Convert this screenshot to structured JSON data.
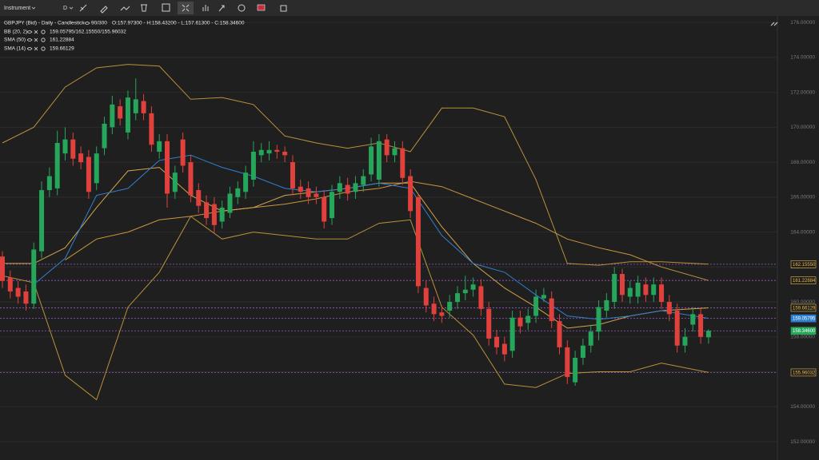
{
  "toolbar": {
    "instrument": "Instrument",
    "timeframe": "D"
  },
  "chart_data": {
    "type": "candlestick",
    "title": "GBPJPY (Bid) - Daily - Candlestick",
    "subtitle": "90/300",
    "ohlc_text": "O:157.97300 - H:158.43200 - L:157.61300 - C:158.34600",
    "up_color": "#26a65b",
    "down_color": "#e0413c",
    "open": [
      162.6,
      161.4,
      160.8,
      160.6,
      159.9,
      162.9,
      166.4,
      166.5,
      168.5,
      169.3,
      168.5,
      168.3,
      166.8,
      168.8,
      170.0,
      171.2,
      169.7,
      170.8,
      171.5,
      170.8,
      168.6,
      169.2,
      166.3,
      169.3,
      168.0,
      166.4,
      165.7,
      165.6,
      164.6,
      165.1,
      166.0,
      166.3,
      167.0,
      168.4,
      168.5,
      168.7,
      168.6,
      168.0,
      166.6,
      166.5,
      166.2,
      166.0,
      164.8,
      166.3,
      166.7,
      166.3,
      166.7,
      167.3,
      167.0,
      169.3,
      168.4,
      168.8,
      167.2,
      166.0,
      160.8,
      159.9,
      159.4,
      159.5,
      160.0,
      160.5,
      160.7,
      160.9,
      159.6,
      158.0,
      157.6,
      157.2,
      159.1,
      158.8,
      159.2,
      160.2,
      160.2,
      158.9,
      157.4,
      155.4,
      156.8,
      157.5,
      158.3,
      159.5,
      160.0,
      161.6,
      160.3,
      160.3,
      161.0,
      160.4,
      161.0,
      160.0,
      159.5,
      157.5,
      158.7,
      159.3,
      157.973
    ],
    "high": [
      162.9,
      161.8,
      161.2,
      161.0,
      163.4,
      166.9,
      167.7,
      169.8,
      170.0,
      169.7,
      168.9,
      168.7,
      168.9,
      170.6,
      171.8,
      171.6,
      172.1,
      172.8,
      171.9,
      171.2,
      169.6,
      169.6,
      167.8,
      169.7,
      168.4,
      166.8,
      166.1,
      166.0,
      165.8,
      166.6,
      166.9,
      167.8,
      169.2,
      169.1,
      169.2,
      169.0,
      168.9,
      168.4,
      167.0,
      166.9,
      166.6,
      166.4,
      166.7,
      167.2,
      167.1,
      167.2,
      167.6,
      169.4,
      169.6,
      169.6,
      169.2,
      169.2,
      167.6,
      166.2,
      161.2,
      160.3,
      159.8,
      160.4,
      160.9,
      161.5,
      161.4,
      161.3,
      160.0,
      158.4,
      158.0,
      159.5,
      159.5,
      159.6,
      160.7,
      160.8,
      160.6,
      159.3,
      157.8,
      157.2,
      157.9,
      158.7,
      160.1,
      160.5,
      162.0,
      161.9,
      161.2,
      161.5,
      161.4,
      161.4,
      161.4,
      160.4,
      159.9,
      158.5,
      159.7,
      159.6,
      158.432
    ],
    "low": [
      160.8,
      160.2,
      159.9,
      159.5,
      159.6,
      162.5,
      166.0,
      166.1,
      168.1,
      167.8,
      167.6,
      165.9,
      166.4,
      168.4,
      169.6,
      170.1,
      169.3,
      170.4,
      170.4,
      168.6,
      168.2,
      165.4,
      165.9,
      167.4,
      165.7,
      165.1,
      164.4,
      163.9,
      164.2,
      164.8,
      165.6,
      165.9,
      166.6,
      168.0,
      168.1,
      168.2,
      168.0,
      166.1,
      165.9,
      165.6,
      165.6,
      164.2,
      164.4,
      165.9,
      165.8,
      165.9,
      166.3,
      166.9,
      166.6,
      168.0,
      168.0,
      166.7,
      164.8,
      160.5,
      159.4,
      158.9,
      158.8,
      159.1,
      159.6,
      160.1,
      160.3,
      159.2,
      157.5,
      157.0,
      156.6,
      156.8,
      158.2,
      158.4,
      158.8,
      160.0,
      158.5,
      157.0,
      155.3,
      155.2,
      156.4,
      157.1,
      157.8,
      159.1,
      159.6,
      160.0,
      159.9,
      159.9,
      160.0,
      160.0,
      159.6,
      158.9,
      157.1,
      157.1,
      158.3,
      157.6,
      157.613
    ],
    "close": [
      161.2,
      160.6,
      160.3,
      159.9,
      163.0,
      166.4,
      167.2,
      169.1,
      169.3,
      168.2,
      168.0,
      166.3,
      168.5,
      170.2,
      171.3,
      170.5,
      171.7,
      171.6,
      170.8,
      169.0,
      169.2,
      166.2,
      167.4,
      167.8,
      166.1,
      165.5,
      164.8,
      164.4,
      165.4,
      166.2,
      166.5,
      167.4,
      168.6,
      168.7,
      168.7,
      168.6,
      168.4,
      166.5,
      166.3,
      166.0,
      166.0,
      164.6,
      166.3,
      166.8,
      166.2,
      166.8,
      167.2,
      168.9,
      169.2,
      168.4,
      168.8,
      167.1,
      165.2,
      160.9,
      159.8,
      159.3,
      159.2,
      160.0,
      160.5,
      160.7,
      161.0,
      159.6,
      157.9,
      157.4,
      157.0,
      159.1,
      158.6,
      159.2,
      160.3,
      160.4,
      158.9,
      157.4,
      155.7,
      156.8,
      157.5,
      158.3,
      159.7,
      160.1,
      161.6,
      160.4,
      160.8,
      161.1,
      160.4,
      161.0,
      160.0,
      159.3,
      157.5,
      158.0,
      159.3,
      158.0,
      158.346
    ],
    "bands": {
      "name": "BB (20, 2)",
      "value_label": "159.05795/162.15550/155.96032",
      "color": "#b8913a",
      "middle_color": "#2f7fd1",
      "x": [
        0,
        4,
        8,
        12,
        16,
        20,
        24,
        28,
        32,
        36,
        40,
        44,
        48,
        52,
        56,
        60,
        64,
        68,
        72,
        76,
        80,
        84,
        90
      ],
      "upper": [
        169.1,
        170.0,
        172.3,
        173.4,
        173.6,
        173.5,
        171.6,
        171.7,
        171.3,
        169.5,
        169.1,
        168.8,
        169.1,
        168.6,
        171.1,
        171.1,
        170.6,
        167.0,
        162.2,
        162.1,
        162.3,
        162.3,
        162.16
      ],
      "middle": [
        null,
        161.0,
        162.5,
        166.1,
        166.5,
        168.1,
        168.4,
        167.7,
        167.2,
        166.5,
        166.3,
        166.5,
        166.8,
        166.5,
        163.8,
        162.2,
        161.7,
        160.4,
        159.2,
        159.0,
        159.2,
        159.5,
        159.06
      ],
      "lower": [
        161.5,
        161.1,
        155.8,
        154.4,
        159.7,
        161.7,
        164.9,
        163.6,
        164.0,
        163.8,
        163.6,
        163.6,
        164.5,
        164.7,
        159.7,
        158.1,
        155.3,
        155.1,
        155.9,
        156.0,
        156.0,
        156.5,
        155.96
      ]
    },
    "sma": [
      {
        "name": "SMA (50)",
        "value_label": "161.22884",
        "color": "#c8963c",
        "x": [
          8,
          12,
          16,
          20,
          24,
          28,
          32,
          36,
          40,
          44,
          48,
          52,
          56,
          60,
          64,
          68,
          72,
          76,
          80,
          84,
          90
        ],
        "values": [
          162.4,
          163.6,
          164.0,
          164.7,
          164.9,
          165.2,
          165.4,
          165.6,
          165.9,
          166.3,
          166.5,
          166.9,
          166.6,
          165.9,
          165.2,
          164.5,
          163.6,
          163.1,
          162.7,
          162.0,
          161.23
        ]
      },
      {
        "name": "SMA (14)",
        "value_label": "159.66129",
        "color": "#d6a44a",
        "x": [
          0,
          4,
          8,
          12,
          16,
          20,
          24,
          28,
          32,
          36,
          40,
          44,
          48,
          52,
          56,
          60,
          64,
          68,
          72,
          76,
          80,
          84,
          90
        ],
        "values": [
          162.2,
          162.2,
          163.1,
          165.4,
          167.5,
          167.7,
          166.1,
          165.2,
          165.4,
          166.1,
          166.3,
          166.5,
          166.8,
          166.8,
          164.3,
          162.2,
          160.8,
          159.7,
          158.5,
          158.7,
          159.2,
          159.5,
          159.66
        ]
      }
    ],
    "price_lines": [
      {
        "value": 162.1555,
        "label": "162.15550",
        "color": "#e6b84a",
        "filled": false
      },
      {
        "value": 161.22884,
        "label": "161.22884",
        "color": "#e6b84a",
        "filled": false
      },
      {
        "value": 159.66129,
        "label": "159.66129",
        "color": "#e6b84a",
        "filled": false
      },
      {
        "value": 159.05795,
        "label": "159.05795",
        "color": "#2f7fd1",
        "filled": true
      },
      {
        "value": 158.346,
        "label": "158.34600",
        "color": "#26a65b",
        "filled": true
      },
      {
        "value": 155.96032,
        "label": "155.96032",
        "color": "#e6b84a",
        "filled": false
      }
    ],
    "line_color": "#9a5cc6",
    "ylim": [
      150.95,
      176.37
    ],
    "yticks": [
      {
        "value": 152,
        "label": "152.00000"
      },
      {
        "value": 154,
        "label": "154.00000"
      },
      {
        "value": 156,
        "label": "156.00000"
      },
      {
        "value": 158,
        "label": "158.00000"
      },
      {
        "value": 160,
        "label": "160.00000"
      },
      {
        "value": 162,
        "label": "162.00000"
      },
      {
        "value": 164,
        "label": "164.00000"
      },
      {
        "value": 166,
        "label": "166.00000"
      },
      {
        "value": 168,
        "label": "168.00000"
      },
      {
        "value": 170,
        "label": "170.00000"
      },
      {
        "value": 172,
        "label": "172.00000"
      },
      {
        "value": 174,
        "label": "174.00000"
      },
      {
        "value": 176,
        "label": "176.00000"
      }
    ],
    "grid": true
  }
}
